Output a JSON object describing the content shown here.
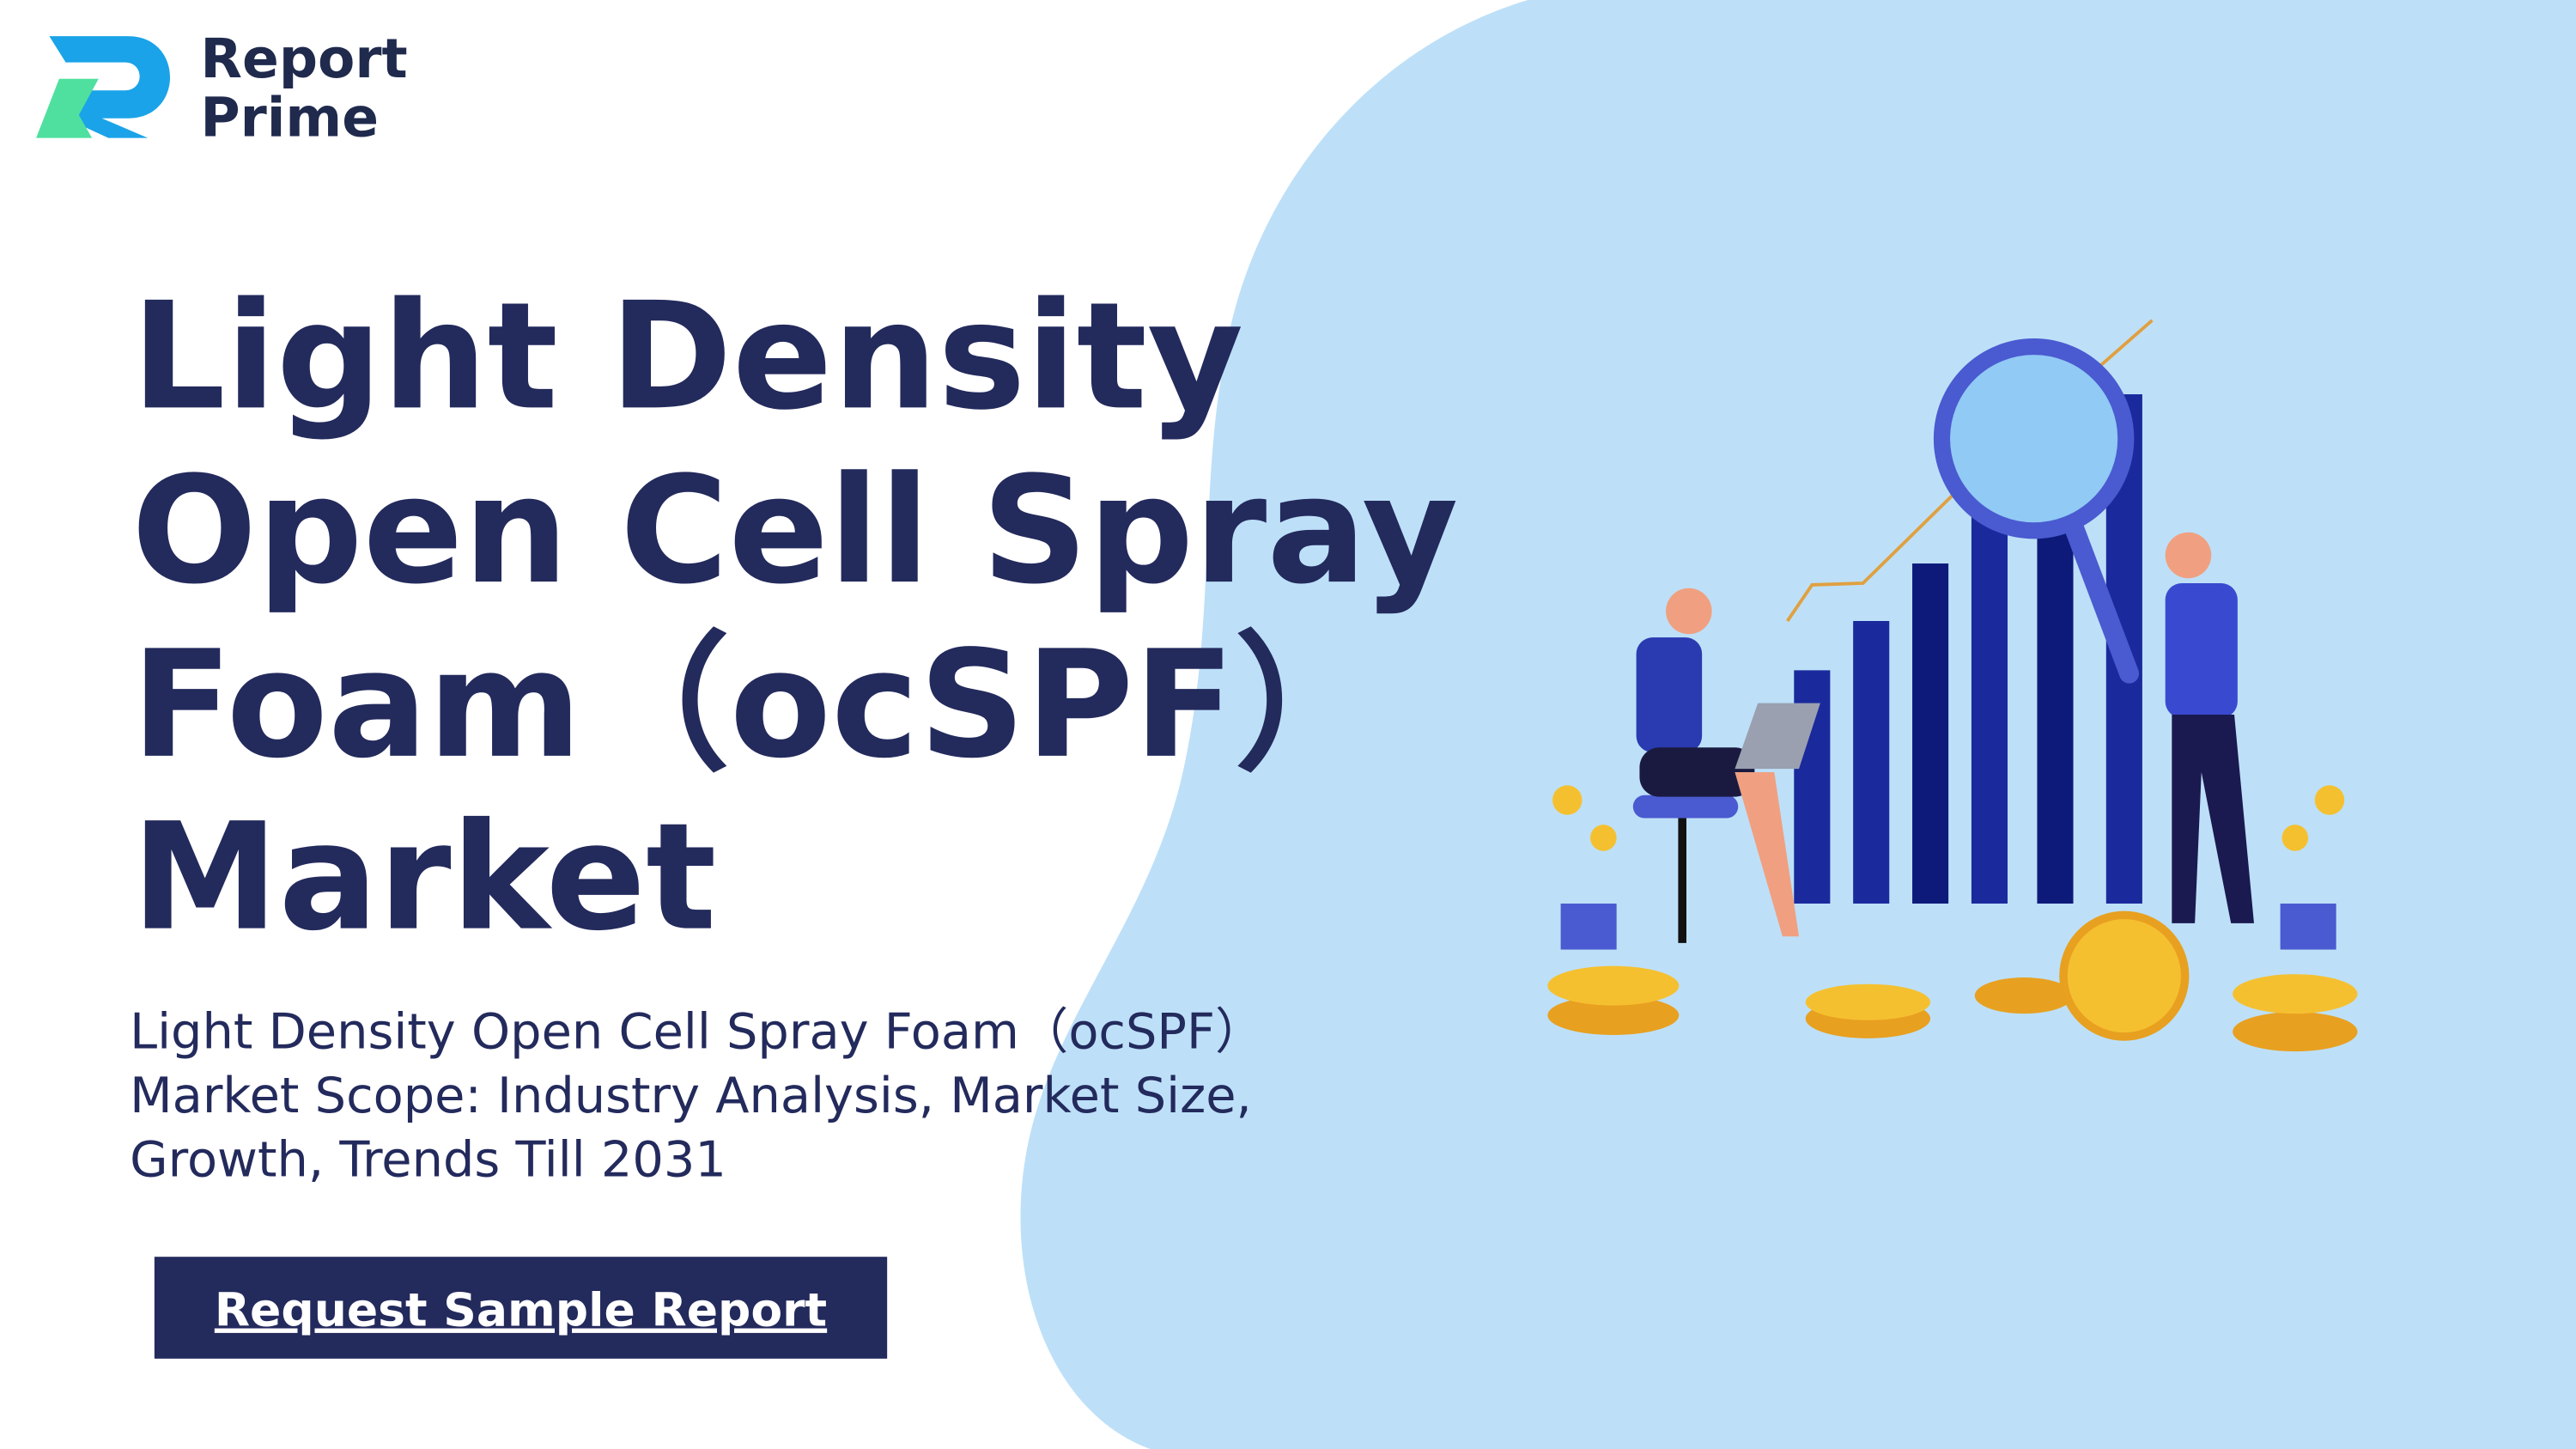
{
  "logo": {
    "line1": "Report",
    "line2": "Prime"
  },
  "title": {
    "lines": [
      "Light Density",
      "Open Cell Spray",
      "Foam（ocSPF）",
      "Market"
    ]
  },
  "subtitle": {
    "lines": [
      "Light Density Open Cell Spray Foam（ocSPF）",
      "Market Scope: Industry Analysis, Market Size,",
      "Growth, Trends Till 2031"
    ]
  },
  "button": {
    "label": "Request Sample Report"
  }
}
